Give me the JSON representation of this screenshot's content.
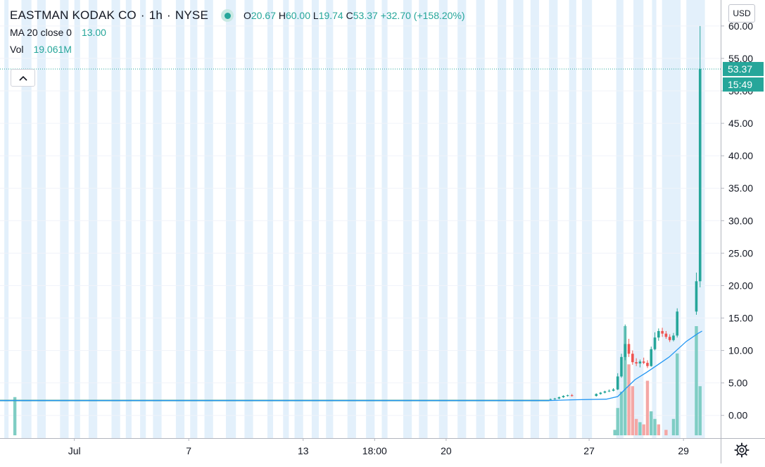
{
  "legend": {
    "symbol": "EASTMAN KODAK CO",
    "interval": "1h",
    "exchange": "NYSE",
    "open_label": "O",
    "open": "20.67",
    "high_label": "H",
    "high": "60.00",
    "low_label": "L",
    "low": "19.74",
    "close_label": "C",
    "close": "53.37",
    "change": "+32.70 (+158.20%)",
    "ma_label": "MA 20 close 0",
    "ma_value": "13.00",
    "vol_label": "Vol",
    "vol_value": "19.061M"
  },
  "currency_button": "USD",
  "icons": {
    "collapse": "chevron-up-icon",
    "settings": "gear-icon",
    "status": "status-dot-icon"
  },
  "colors": {
    "up": "#26a69a",
    "down": "#ef5350",
    "ma": "#2196f3",
    "session_shade": "#e3f0fb"
  },
  "price_label": "53.37",
  "countdown_label": "15:49",
  "chart_data": {
    "type": "candlestick",
    "series": [
      {
        "name": "EASTMAN KODAK CO",
        "kind": "price"
      },
      {
        "name": "MA 20 close 0",
        "kind": "line"
      },
      {
        "name": "Vol",
        "kind": "volume"
      }
    ],
    "y_ticks": [
      "60.00",
      "55.00",
      "50.00",
      "45.00",
      "40.00",
      "35.00",
      "30.00",
      "25.00",
      "20.00",
      "15.00",
      "10.00",
      "5.00",
      "0.00"
    ],
    "ylim": [
      -3.5,
      64
    ],
    "x_ticks": [
      {
        "label": "Jul",
        "x": 1.0
      },
      {
        "label": "7",
        "x": 5.0
      },
      {
        "label": "13",
        "x": 9.0
      },
      {
        "label": "18:00",
        "x": 11.5
      },
      {
        "label": "20",
        "x": 14.0
      },
      {
        "label": "27",
        "x": 19.0
      },
      {
        "label": "29",
        "x": 22.3
      }
    ],
    "xlim": [
      -1.6,
      23.6
    ],
    "last_price": 53.37,
    "flat_price": 2.3,
    "flat_x_range": [
      -1.6,
      17.6
    ],
    "candles": [
      {
        "x": 17.65,
        "o": 2.4,
        "h": 2.6,
        "l": 2.3,
        "c": 2.5
      },
      {
        "x": 17.8,
        "o": 2.5,
        "h": 2.7,
        "l": 2.4,
        "c": 2.6
      },
      {
        "x": 17.95,
        "o": 2.6,
        "h": 2.9,
        "l": 2.5,
        "c": 2.8
      },
      {
        "x": 18.1,
        "o": 2.8,
        "h": 3.1,
        "l": 2.7,
        "c": 3.0
      },
      {
        "x": 18.25,
        "o": 3.0,
        "h": 3.2,
        "l": 2.9,
        "c": 3.1
      },
      {
        "x": 18.4,
        "o": 3.1,
        "h": 3.3,
        "l": 2.9,
        "c": 3.0
      },
      {
        "x": 19.25,
        "o": 3.0,
        "h": 3.4,
        "l": 2.9,
        "c": 3.3
      },
      {
        "x": 19.4,
        "o": 3.3,
        "h": 3.6,
        "l": 3.2,
        "c": 3.5
      },
      {
        "x": 19.55,
        "o": 3.5,
        "h": 3.8,
        "l": 3.4,
        "c": 3.7
      },
      {
        "x": 19.7,
        "o": 3.7,
        "h": 4.0,
        "l": 3.6,
        "c": 3.8
      },
      {
        "x": 19.85,
        "o": 3.8,
        "h": 4.2,
        "l": 3.7,
        "c": 4.0
      },
      {
        "x": 20.0,
        "o": 4.0,
        "h": 6.5,
        "l": 3.9,
        "c": 6.0
      },
      {
        "x": 20.13,
        "o": 6.0,
        "h": 9.5,
        "l": 5.8,
        "c": 9.0
      },
      {
        "x": 20.26,
        "o": 9.0,
        "h": 14.0,
        "l": 8.5,
        "c": 11.0
      },
      {
        "x": 20.39,
        "o": 11.0,
        "h": 11.8,
        "l": 9.0,
        "c": 9.5
      },
      {
        "x": 20.52,
        "o": 9.5,
        "h": 10.0,
        "l": 7.8,
        "c": 8.2
      },
      {
        "x": 20.65,
        "o": 8.2,
        "h": 8.8,
        "l": 7.6,
        "c": 8.0
      },
      {
        "x": 20.78,
        "o": 8.0,
        "h": 8.6,
        "l": 7.4,
        "c": 8.3
      },
      {
        "x": 20.91,
        "o": 8.3,
        "h": 8.9,
        "l": 7.9,
        "c": 8.1
      },
      {
        "x": 21.04,
        "o": 8.1,
        "h": 8.5,
        "l": 7.3,
        "c": 7.6
      },
      {
        "x": 21.17,
        "o": 7.6,
        "h": 10.6,
        "l": 7.5,
        "c": 10.2
      },
      {
        "x": 21.3,
        "o": 10.2,
        "h": 12.8,
        "l": 10.0,
        "c": 12.0
      },
      {
        "x": 21.43,
        "o": 12.0,
        "h": 13.4,
        "l": 11.5,
        "c": 13.0
      },
      {
        "x": 21.56,
        "o": 13.0,
        "h": 13.5,
        "l": 12.1,
        "c": 12.6
      },
      {
        "x": 21.69,
        "o": 12.6,
        "h": 13.0,
        "l": 11.8,
        "c": 12.1
      },
      {
        "x": 21.82,
        "o": 12.1,
        "h": 12.5,
        "l": 11.3,
        "c": 11.6
      },
      {
        "x": 21.95,
        "o": 11.6,
        "h": 12.7,
        "l": 11.4,
        "c": 12.3
      },
      {
        "x": 22.08,
        "o": 12.3,
        "h": 16.5,
        "l": 12.0,
        "c": 16.0
      },
      {
        "x": 22.75,
        "o": 16.0,
        "h": 22.0,
        "l": 15.5,
        "c": 20.67
      },
      {
        "x": 22.88,
        "o": 20.67,
        "h": 60.0,
        "l": 19.74,
        "c": 53.37
      }
    ],
    "ma": [
      {
        "x": -1.6,
        "y": 2.3
      },
      {
        "x": 17.6,
        "y": 2.3
      },
      {
        "x": 18.4,
        "y": 2.4
      },
      {
        "x": 19.6,
        "y": 2.5
      },
      {
        "x": 20.0,
        "y": 2.9
      },
      {
        "x": 20.3,
        "y": 4.2
      },
      {
        "x": 20.6,
        "y": 5.5
      },
      {
        "x": 21.0,
        "y": 6.6
      },
      {
        "x": 21.4,
        "y": 7.8
      },
      {
        "x": 21.8,
        "y": 9.0
      },
      {
        "x": 22.1,
        "y": 10.2
      },
      {
        "x": 22.4,
        "y": 11.4
      },
      {
        "x": 22.8,
        "y": 12.6
      },
      {
        "x": 22.95,
        "y": 13.0
      }
    ],
    "volume": [
      {
        "x": -1.08,
        "v": 0.35,
        "up": true
      },
      {
        "x": 19.9,
        "v": 0.05,
        "up": true
      },
      {
        "x": 20.0,
        "v": 0.25,
        "up": true
      },
      {
        "x": 20.13,
        "v": 0.4,
        "up": true
      },
      {
        "x": 20.26,
        "v": 1.0,
        "up": true
      },
      {
        "x": 20.39,
        "v": 0.65,
        "up": false
      },
      {
        "x": 20.52,
        "v": 0.45,
        "up": false
      },
      {
        "x": 20.65,
        "v": 0.15,
        "up": false
      },
      {
        "x": 20.78,
        "v": 0.12,
        "up": true
      },
      {
        "x": 20.91,
        "v": 0.1,
        "up": false
      },
      {
        "x": 21.04,
        "v": 0.5,
        "up": false
      },
      {
        "x": 21.17,
        "v": 0.22,
        "up": true
      },
      {
        "x": 21.3,
        "v": 0.15,
        "up": true
      },
      {
        "x": 21.43,
        "v": 0.1,
        "up": false
      },
      {
        "x": 21.69,
        "v": 0.05,
        "up": false
      },
      {
        "x": 21.95,
        "v": 0.15,
        "up": true
      },
      {
        "x": 22.08,
        "v": 0.75,
        "up": true
      },
      {
        "x": 22.75,
        "v": 1.0,
        "up": true
      },
      {
        "x": 22.88,
        "v": 0.45,
        "up": true
      }
    ],
    "sessions": [
      [
        -1.45,
        -1.3
      ],
      [
        -0.85,
        -0.5
      ],
      [
        -0.3,
        0.0
      ],
      [
        0.5,
        0.8
      ],
      [
        1.0,
        1.2
      ],
      [
        1.5,
        1.8
      ],
      [
        2.3,
        2.6
      ],
      [
        2.8,
        3.0
      ],
      [
        3.3,
        3.5
      ],
      [
        3.75,
        4.05
      ],
      [
        4.55,
        4.85
      ],
      [
        5.05,
        5.3
      ],
      [
        5.55,
        5.85
      ],
      [
        6.3,
        6.65
      ],
      [
        6.95,
        7.25
      ],
      [
        7.75,
        7.95
      ],
      [
        8.3,
        8.5
      ],
      [
        8.7,
        9.0
      ],
      [
        9.3,
        9.55
      ],
      [
        9.8,
        10.05
      ],
      [
        10.55,
        10.85
      ],
      [
        11.2,
        11.5
      ],
      [
        11.75,
        11.95
      ],
      [
        12.5,
        12.8
      ],
      [
        13.05,
        13.35
      ],
      [
        13.75,
        14.05
      ],
      [
        14.4,
        14.7
      ],
      [
        15.05,
        15.35
      ],
      [
        15.8,
        16.1
      ],
      [
        16.35,
        16.7
      ],
      [
        16.95,
        17.25
      ],
      [
        17.6,
        17.9
      ],
      [
        18.3,
        18.55
      ],
      [
        18.75,
        19.1
      ],
      [
        19.95,
        20.2
      ],
      [
        20.55,
        20.9
      ],
      [
        21.2,
        21.35
      ],
      [
        21.55,
        22.2
      ],
      [
        22.4,
        23.05
      ]
    ]
  }
}
